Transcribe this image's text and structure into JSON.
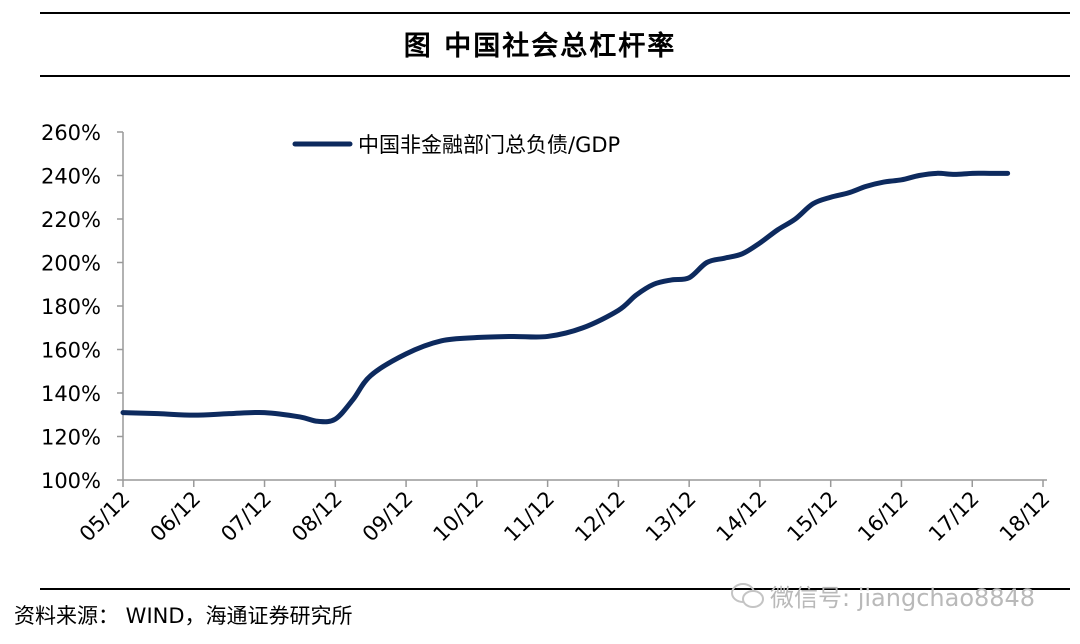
{
  "page": {
    "title": "图    中国社会总杠杆率",
    "source": "资料来源：  WIND，海通证券研究所",
    "watermark": "微信号: jiangchao8848"
  },
  "chart_data": {
    "type": "line",
    "title": "",
    "xlabel": "",
    "ylabel": "",
    "ylim": [
      1.0,
      2.6
    ],
    "yticks": [
      "100%",
      "120%",
      "140%",
      "160%",
      "180%",
      "200%",
      "220%",
      "240%",
      "260%"
    ],
    "x_ticks": [
      "05/12",
      "06/12",
      "07/12",
      "08/12",
      "09/12",
      "10/12",
      "11/12",
      "12/12",
      "13/12",
      "14/12",
      "15/12",
      "16/12",
      "17/12",
      "18/12"
    ],
    "grid": false,
    "legend": "top-center",
    "line_color": "#0d2a5e",
    "series": [
      {
        "name": "中国非金融部门总负债/GDP",
        "x": [
          "2005-12",
          "2006-06",
          "2006-12",
          "2007-06",
          "2007-12",
          "2008-06",
          "2008-09",
          "2008-12",
          "2009-03",
          "2009-06",
          "2009-12",
          "2010-06",
          "2010-12",
          "2011-06",
          "2011-12",
          "2012-06",
          "2012-12",
          "2013-03",
          "2013-06",
          "2013-09",
          "2013-12",
          "2014-03",
          "2014-06",
          "2014-09",
          "2014-12",
          "2015-03",
          "2015-06",
          "2015-09",
          "2015-12",
          "2016-03",
          "2016-06",
          "2016-09",
          "2016-12",
          "2017-03",
          "2017-06",
          "2017-09",
          "2017-12",
          "2018-03",
          "2018-06"
        ],
        "values": [
          1.31,
          1.305,
          1.298,
          1.305,
          1.31,
          1.29,
          1.27,
          1.28,
          1.37,
          1.48,
          1.58,
          1.64,
          1.655,
          1.66,
          1.66,
          1.7,
          1.78,
          1.85,
          1.9,
          1.92,
          1.93,
          2.0,
          2.02,
          2.04,
          2.09,
          2.15,
          2.2,
          2.27,
          2.3,
          2.32,
          2.35,
          2.37,
          2.38,
          2.4,
          2.41,
          2.405,
          2.41,
          2.41,
          2.41
        ]
      }
    ]
  }
}
